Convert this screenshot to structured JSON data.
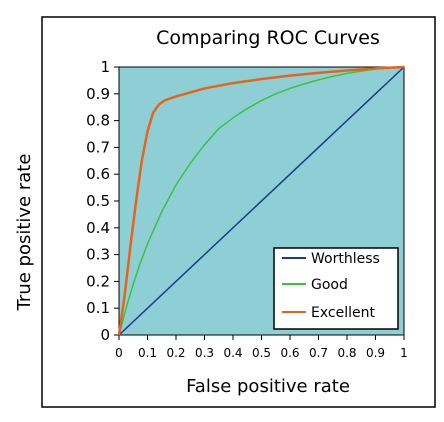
{
  "chart_data": {
    "type": "line",
    "title": "Comparing ROC Curves",
    "xlabel": "False positive rate",
    "ylabel": "True positive rate",
    "xlim": [
      0,
      1
    ],
    "ylim": [
      0,
      1
    ],
    "xticks": [
      "0",
      "0.1",
      "0.2",
      "0.3",
      "0.4",
      "0.5",
      "0.6",
      "0.7",
      "0.8",
      "0.9",
      "1"
    ],
    "yticks": [
      "0",
      "0.1",
      "0.2",
      "0.3",
      "0.4",
      "0.5",
      "0.6",
      "0.7",
      "0.8",
      "0.9",
      "1"
    ],
    "grid": false,
    "legend_position": "bottom-right",
    "plot_background": "#8ecfd6",
    "series": [
      {
        "name": "Worthless",
        "color": "#1a3a8c",
        "x": [
          0,
          1
        ],
        "y": [
          0,
          1
        ]
      },
      {
        "name": "Good",
        "color": "#3cc23c",
        "x": [
          0,
          0.025,
          0.05,
          0.075,
          0.1,
          0.15,
          0.2,
          0.25,
          0.3,
          0.35,
          0.4,
          0.45,
          0.5,
          0.55,
          0.6,
          0.65,
          0.7,
          0.75,
          0.8,
          0.85,
          0.9,
          0.95,
          1
        ],
        "y": [
          0,
          0.1,
          0.19,
          0.27,
          0.34,
          0.46,
          0.56,
          0.64,
          0.71,
          0.77,
          0.81,
          0.845,
          0.875,
          0.9,
          0.92,
          0.937,
          0.952,
          0.965,
          0.976,
          0.985,
          0.992,
          0.997,
          1
        ]
      },
      {
        "name": "Excellent",
        "color": "#e8621a",
        "x": [
          0,
          0.02,
          0.04,
          0.06,
          0.08,
          0.1,
          0.12,
          0.14,
          0.16,
          0.2,
          0.25,
          0.3,
          0.4,
          0.5,
          0.6,
          0.7,
          0.8,
          0.9,
          1
        ],
        "y": [
          0,
          0.15,
          0.33,
          0.5,
          0.65,
          0.76,
          0.83,
          0.86,
          0.875,
          0.89,
          0.905,
          0.92,
          0.94,
          0.955,
          0.968,
          0.978,
          0.987,
          0.995,
          1
        ]
      }
    ]
  }
}
